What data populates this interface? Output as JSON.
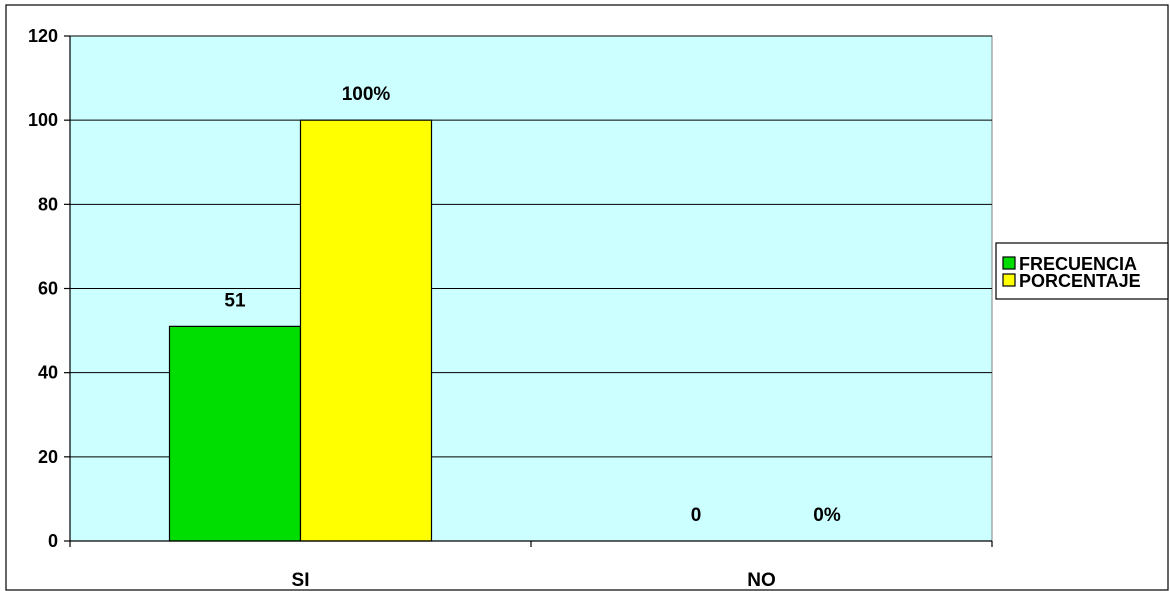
{
  "chart_data": {
    "type": "bar",
    "categories": [
      "SI",
      "NO"
    ],
    "series": [
      {
        "name": "FRECUENCIA",
        "values": [
          51,
          0
        ],
        "labels": [
          "51",
          "0"
        ],
        "color": "#00dd00"
      },
      {
        "name": "PORCENTAJE",
        "values": [
          100,
          0
        ],
        "labels": [
          "100%",
          "0%"
        ],
        "color": "#ffff00"
      }
    ],
    "ylim": [
      0,
      120
    ],
    "yticks": [
      "0",
      "20",
      "40",
      "60",
      "80",
      "100",
      "120"
    ],
    "grid": true,
    "legend": "right",
    "plot_background": "#ccffff"
  }
}
